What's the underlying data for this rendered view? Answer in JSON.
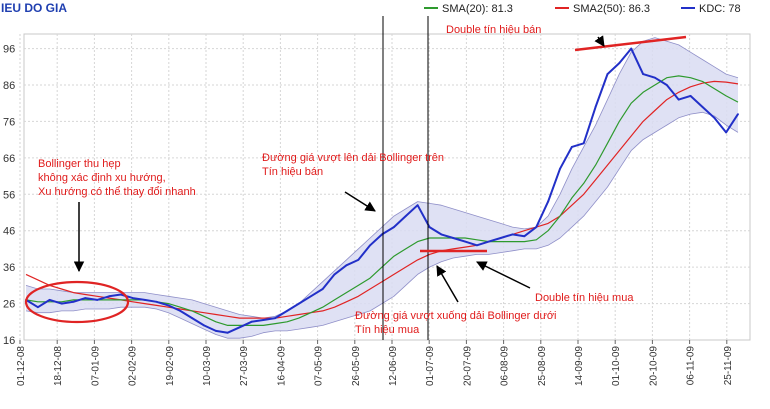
{
  "chart_data": {
    "type": "line",
    "title": "IEU DO GIA",
    "legend": {
      "placement": "top-right",
      "items": [
        {
          "label": "SMA(20): 81.3",
          "color": "#2e9a2e"
        },
        {
          "label": "SMA2(50): 86.3",
          "color": "#e02424"
        },
        {
          "label": "KDC: 78",
          "color": "#2230c8"
        }
      ]
    },
    "y_axis": {
      "range": [
        16,
        100
      ],
      "ticks": [
        "96",
        "86",
        "76",
        "66",
        "56",
        "46",
        "36",
        "26",
        "16"
      ]
    },
    "x_axis": {
      "ticks": [
        "01-12-08",
        "18-12-08",
        "07-01-09",
        "02-02-09",
        "19-02-09",
        "10-03-09",
        "27-03-09",
        "16-04-09",
        "07-05-09",
        "26-05-09",
        "12-06-09",
        "01-07-09",
        "20-07-09",
        "06-08-09",
        "25-08-09",
        "14-09-09",
        "01-10-09",
        "20-10-09",
        "06-11-09",
        "25-11-09"
      ]
    },
    "grid": true,
    "series": [
      {
        "name": "KDC",
        "color": "#2230c8",
        "values": [
          27,
          25,
          27,
          26,
          26.5,
          27.5,
          27,
          28,
          28.5,
          27.5,
          27,
          26.5,
          25.5,
          24,
          22,
          20,
          18.5,
          18,
          19.5,
          21,
          21.5,
          22,
          24,
          26,
          28,
          30,
          34,
          36.5,
          38,
          42,
          45,
          47,
          50,
          53,
          47,
          45,
          44,
          43,
          42,
          43,
          44,
          45,
          44.5,
          47,
          54,
          63,
          69,
          70,
          80,
          89,
          92,
          96,
          89,
          88,
          86,
          82,
          83,
          80,
          77,
          73,
          78
        ]
      },
      {
        "name": "SMA(20)",
        "color": "#2e9a2e",
        "values": [
          27,
          26.5,
          26.5,
          26.5,
          27,
          27,
          27,
          27,
          27,
          27,
          27,
          26.5,
          26,
          25,
          24,
          22.5,
          21,
          20,
          20,
          20,
          20,
          20.5,
          21,
          22,
          23.5,
          25,
          27,
          29,
          31,
          33,
          36,
          39,
          41,
          43,
          44,
          44,
          44,
          44,
          43.5,
          43,
          43,
          43,
          43,
          43.5,
          46,
          50,
          55,
          59,
          64,
          70,
          76,
          81,
          84,
          86,
          88,
          88.5,
          88,
          87,
          85,
          83,
          81.3
        ]
      },
      {
        "name": "SMA2(50)",
        "color": "#e02424",
        "values": [
          34,
          32.5,
          31,
          30,
          29,
          28.5,
          28,
          27.5,
          27,
          26.5,
          26,
          25.5,
          25,
          24.5,
          24,
          23.5,
          23,
          22.5,
          22,
          22,
          22,
          22,
          22.5,
          23,
          23.5,
          24,
          25,
          26.5,
          28,
          30,
          32,
          34,
          36,
          38,
          39.5,
          40.5,
          41,
          41.5,
          42,
          43,
          44,
          45,
          46,
          47,
          48,
          50,
          53,
          56,
          60,
          64,
          68,
          72,
          76,
          79,
          82,
          84,
          85.5,
          86.5,
          87,
          86.8,
          86.3
        ]
      },
      {
        "name": "Bollinger upper",
        "color": "#8f8fc8",
        "values": [
          31,
          30,
          30,
          29.5,
          29,
          29,
          29,
          29,
          29,
          29,
          29,
          28.5,
          28,
          27.5,
          27,
          26,
          25,
          24,
          23,
          22.5,
          22,
          22.5,
          24,
          26,
          29,
          32,
          35,
          38,
          41,
          44,
          47,
          50,
          52,
          54,
          53.5,
          53,
          52,
          51,
          50,
          49,
          48,
          47,
          46.5,
          47,
          50,
          56,
          63,
          69,
          75,
          82,
          89,
          95,
          98,
          99,
          98,
          97,
          95,
          93,
          91,
          89,
          88
        ]
      },
      {
        "name": "Bollinger lower",
        "color": "#8f8fc8",
        "values": [
          24,
          23.5,
          23.5,
          24,
          24,
          24.5,
          24.5,
          24.5,
          25,
          25,
          25,
          24.5,
          23.5,
          22,
          20.5,
          19,
          17.5,
          16.5,
          16.5,
          17,
          18,
          18.5,
          18.5,
          19,
          19.5,
          20,
          21,
          22,
          23,
          24,
          26,
          28,
          31,
          34,
          36,
          37.5,
          38.5,
          39,
          39.5,
          39.5,
          40,
          40.5,
          41,
          41,
          42,
          44,
          47,
          50,
          54,
          58,
          63,
          68,
          71,
          73,
          75,
          77,
          78,
          78.5,
          77.5,
          75,
          73
        ]
      }
    ],
    "annotations": [
      {
        "id": "double-sell",
        "text": "Double tín hiệu bán"
      },
      {
        "id": "squeeze",
        "lines": [
          "Bollinger thu hẹp",
          "không xác định xu hướng,",
          "Xu hướng có thể thay đổi nhanh"
        ]
      },
      {
        "id": "cross-upper",
        "lines": [
          "Đường giá vượt lên dải Bollinger trên",
          "Tín hiệu bán"
        ]
      },
      {
        "id": "double-buy",
        "text": "Double tín hiệu mua"
      },
      {
        "id": "cross-lower",
        "lines": [
          "Đường giá vượt xuống  dải Bollinger dưới",
          "Tín hiệu mua"
        ]
      }
    ]
  }
}
